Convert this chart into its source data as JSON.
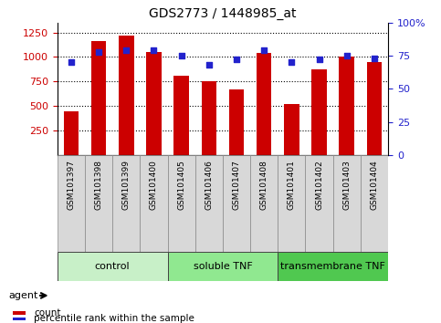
{
  "title": "GDS2773 / 1448985_at",
  "samples": [
    "GSM101397",
    "GSM101398",
    "GSM101399",
    "GSM101400",
    "GSM101405",
    "GSM101406",
    "GSM101407",
    "GSM101408",
    "GSM101401",
    "GSM101402",
    "GSM101403",
    "GSM101404"
  ],
  "counts": [
    450,
    1160,
    1220,
    1050,
    810,
    750,
    670,
    1040,
    520,
    870,
    1000,
    950
  ],
  "percentiles": [
    70,
    78,
    79,
    79,
    75,
    68,
    72,
    79,
    70,
    72,
    75,
    73
  ],
  "groups": [
    {
      "label": "control",
      "start": 0,
      "end": 4,
      "color": "#c8f0c8"
    },
    {
      "label": "soluble TNF",
      "start": 4,
      "end": 8,
      "color": "#90e890"
    },
    {
      "label": "transmembrane TNF",
      "start": 8,
      "end": 12,
      "color": "#50c850"
    }
  ],
  "ylim_left": [
    0,
    1350
  ],
  "ylim_right": [
    0,
    100
  ],
  "yticks_left": [
    250,
    500,
    750,
    1000,
    1250
  ],
  "yticks_right": [
    0,
    25,
    50,
    75,
    100
  ],
  "bar_color": "#cc0000",
  "dot_color": "#2222cc",
  "grid_color": "#000000",
  "tick_color_left": "#cc0000",
  "tick_color_right": "#2222cc",
  "legend_items": [
    {
      "label": "count",
      "color": "#cc0000"
    },
    {
      "label": "percentile rank within the sample",
      "color": "#2222cc"
    }
  ],
  "agent_label": "agent",
  "bar_width": 0.55,
  "xlabel_fontsize": 6.5,
  "title_fontsize": 10,
  "ytick_fontsize": 8,
  "group_fontsize": 8
}
